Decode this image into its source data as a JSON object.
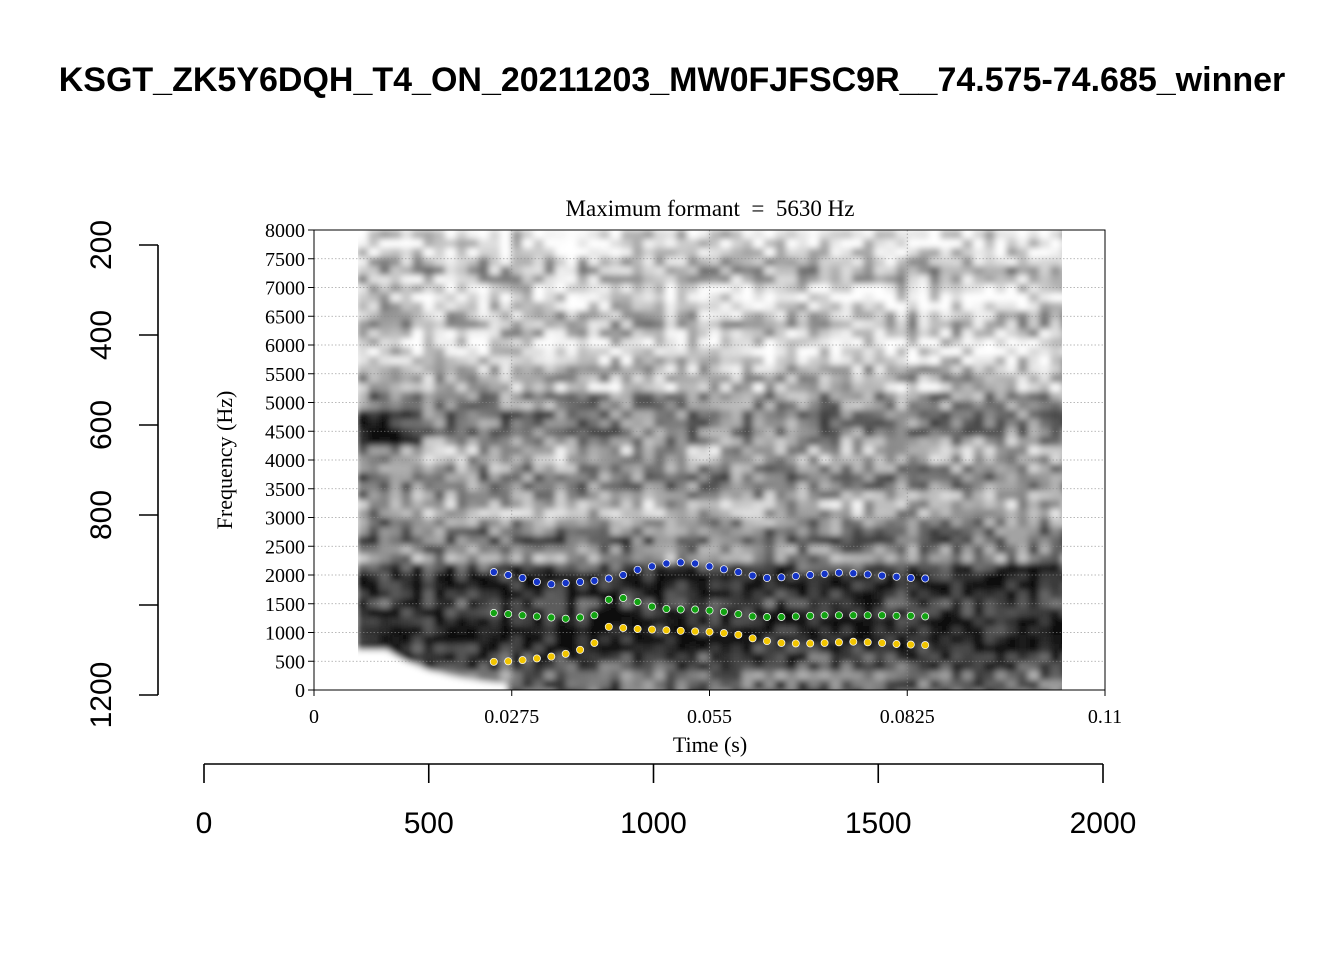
{
  "page": {
    "title": "KSGT_ZK5Y6DQH_T4_ON_20211203_MW0FJFSC9R__74.575-74.685_winner"
  },
  "colors": {
    "f1": "#f2c500",
    "f2": "#12a312",
    "f3": "#1535c8",
    "axis": "#000000",
    "grid": "#8c8c8c"
  },
  "chart_data": [
    {
      "type": "heatmap",
      "title": "Maximum formant  =  5630 Hz",
      "xlabel": "Time (s)",
      "ylabel": "Frequency (Hz)",
      "xlim": [
        0,
        0.11
      ],
      "ylim": [
        0,
        8000
      ],
      "x_ticks": [
        "0",
        "0.0275",
        "0.055",
        "0.0825",
        "0.11"
      ],
      "y_ticks": [
        "0",
        "500",
        "1000",
        "1500",
        "2000",
        "2500",
        "3000",
        "3500",
        "4000",
        "4500",
        "5000",
        "5500",
        "6000",
        "6500",
        "7000",
        "7500",
        "8000"
      ],
      "grid": true,
      "spectrogram_extent_s": [
        0.006,
        0.104
      ],
      "series": [
        {
          "name": "",
          "color_key": "f3",
          "x": [
            0.025,
            0.027,
            0.029,
            0.031,
            0.033,
            0.035,
            0.037,
            0.039,
            0.041,
            0.043,
            0.045,
            0.047,
            0.049,
            0.051,
            0.053,
            0.055,
            0.057,
            0.059,
            0.061,
            0.063,
            0.065,
            0.067,
            0.069,
            0.071,
            0.073,
            0.075,
            0.077,
            0.079,
            0.081,
            0.083,
            0.085
          ],
          "y": [
            2050,
            2000,
            1950,
            1880,
            1840,
            1860,
            1880,
            1900,
            1940,
            2000,
            2090,
            2150,
            2200,
            2220,
            2200,
            2150,
            2100,
            2050,
            1990,
            1950,
            1960,
            1980,
            2000,
            2020,
            2040,
            2030,
            2010,
            1990,
            1970,
            1950,
            1940
          ]
        },
        {
          "name": "",
          "color_key": "f2",
          "x": [
            0.025,
            0.027,
            0.029,
            0.031,
            0.033,
            0.035,
            0.037,
            0.039,
            0.041,
            0.043,
            0.045,
            0.047,
            0.049,
            0.051,
            0.053,
            0.055,
            0.057,
            0.059,
            0.061,
            0.063,
            0.065,
            0.067,
            0.069,
            0.071,
            0.073,
            0.075,
            0.077,
            0.079,
            0.081,
            0.083,
            0.085
          ],
          "y": [
            1340,
            1320,
            1300,
            1280,
            1260,
            1240,
            1260,
            1300,
            1570,
            1600,
            1530,
            1450,
            1410,
            1400,
            1400,
            1380,
            1360,
            1320,
            1280,
            1270,
            1270,
            1280,
            1290,
            1300,
            1300,
            1300,
            1300,
            1300,
            1290,
            1290,
            1280
          ]
        },
        {
          "name": "",
          "color_key": "f1",
          "x": [
            0.025,
            0.027,
            0.029,
            0.031,
            0.033,
            0.035,
            0.037,
            0.039,
            0.041,
            0.043,
            0.045,
            0.047,
            0.049,
            0.051,
            0.053,
            0.055,
            0.057,
            0.059,
            0.061,
            0.063,
            0.065,
            0.067,
            0.069,
            0.071,
            0.073,
            0.075,
            0.077,
            0.079,
            0.081,
            0.083,
            0.085
          ],
          "y": [
            490,
            500,
            520,
            550,
            580,
            630,
            700,
            820,
            1100,
            1080,
            1060,
            1050,
            1040,
            1030,
            1020,
            1010,
            990,
            960,
            900,
            850,
            820,
            810,
            810,
            820,
            830,
            840,
            830,
            820,
            800,
            790,
            780
          ]
        }
      ]
    },
    {
      "type": "scatter",
      "xlim": [
        0,
        2000
      ],
      "x_ticks": [
        "0",
        "500",
        "1000",
        "1500",
        "2000"
      ],
      "ylim": [
        200,
        1200
      ],
      "y_ticks": [
        "200",
        "400",
        "600",
        "800",
        "1200"
      ],
      "y_reversed": true
    }
  ]
}
